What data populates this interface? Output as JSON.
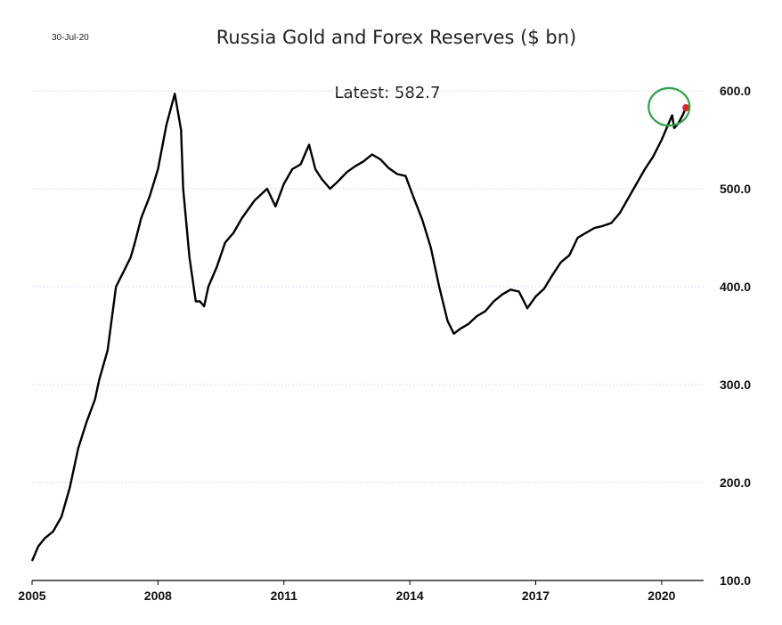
{
  "date_stamp": "30-Jul-20",
  "chart_data": {
    "type": "line",
    "title": "Russia Gold and Forex Reserves ($ bn)",
    "annotation": "Latest:  582.7",
    "latest_value": 582.7,
    "xlabel": "",
    "ylabel": "",
    "xlim": [
      2005,
      2021.0
    ],
    "ylim": [
      100,
      600
    ],
    "x_ticks": [
      "2005",
      "2008",
      "2011",
      "2014",
      "2017",
      "2020"
    ],
    "y_ticks": [
      "100.0",
      "200.0",
      "300.0",
      "400.0",
      "500.0",
      "600.0"
    ],
    "grid": true,
    "y_axis_side": "right",
    "line_color": "#000000",
    "latest_marker_color": "#e8202a",
    "highlight_circle_color": "#27a844",
    "series": [
      {
        "x": [
          2005.0,
          2005.15,
          2005.3,
          2005.5,
          2005.7,
          2005.9,
          2006.1,
          2006.3,
          2006.5,
          2006.6,
          2006.8,
          2007.0,
          2007.2,
          2007.35,
          2007.45,
          2007.6,
          2007.8,
          2008.0,
          2008.2,
          2008.4,
          2008.55,
          2008.6,
          2008.75,
          2008.9,
          2009.0,
          2009.1,
          2009.2,
          2009.3,
          2009.4,
          2009.6,
          2009.8,
          2010.0,
          2010.3,
          2010.6,
          2010.8,
          2011.0,
          2011.2,
          2011.4,
          2011.6,
          2011.75,
          2011.9,
          2012.1,
          2012.3,
          2012.5,
          2012.7,
          2012.9,
          2013.1,
          2013.3,
          2013.5,
          2013.7,
          2013.9,
          2014.1,
          2014.3,
          2014.5,
          2014.7,
          2014.9,
          2015.05,
          2015.2,
          2015.4,
          2015.6,
          2015.8,
          2016.0,
          2016.2,
          2016.4,
          2016.6,
          2016.8,
          2017.0,
          2017.2,
          2017.4,
          2017.6,
          2017.8,
          2018.0,
          2018.2,
          2018.4,
          2018.6,
          2018.8,
          2019.0,
          2019.2,
          2019.4,
          2019.6,
          2019.8,
          2020.0,
          2020.15,
          2020.25,
          2020.3,
          2020.4,
          2020.5,
          2020.58
        ],
        "values": [
          120,
          135,
          143,
          150,
          165,
          195,
          235,
          262,
          285,
          305,
          335,
          400,
          417,
          430,
          445,
          470,
          492,
          520,
          565,
          597,
          560,
          500,
          430,
          385,
          385,
          380,
          400,
          410,
          420,
          445,
          455,
          470,
          488,
          500,
          482,
          505,
          520,
          525,
          545,
          520,
          510,
          500,
          508,
          517,
          523,
          528,
          535,
          530,
          521,
          515,
          513,
          490,
          468,
          440,
          400,
          365,
          352,
          357,
          362,
          370,
          375,
          385,
          392,
          397,
          395,
          378,
          390,
          398,
          412,
          425,
          432,
          450,
          455,
          460,
          462,
          465,
          475,
          490,
          505,
          520,
          533,
          550,
          565,
          575,
          562,
          567,
          575,
          582.7
        ]
      }
    ]
  }
}
